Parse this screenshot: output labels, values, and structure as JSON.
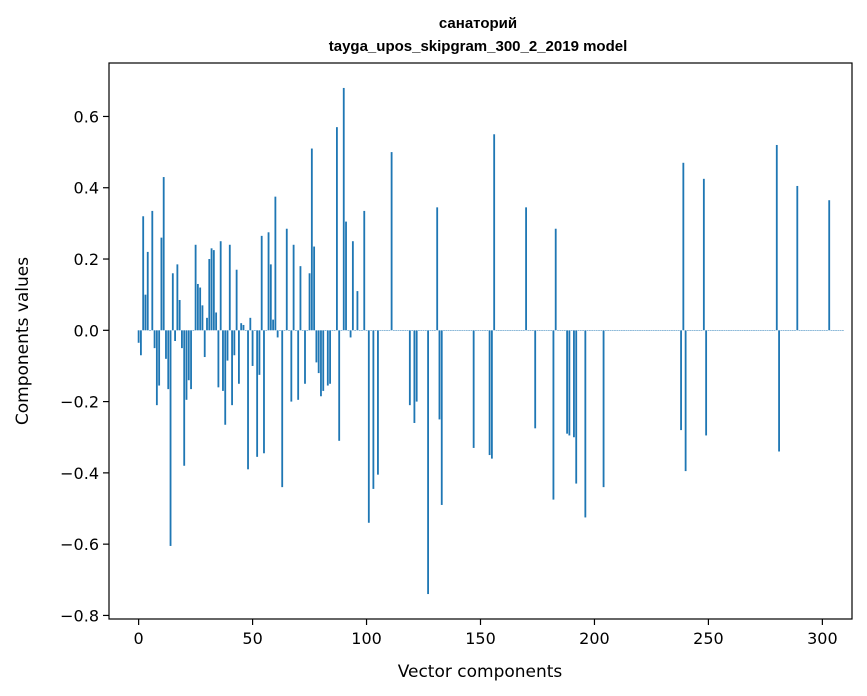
{
  "chart_data": {
    "type": "bar",
    "title": "санаторий",
    "subtitle": "tayga_upos_skipgram_300_2_2019 model",
    "xlabel": "Vector components",
    "ylabel": "Components values",
    "xlim": [
      -13,
      313
    ],
    "ylim": [
      -0.81,
      0.75
    ],
    "xticks": [
      0,
      50,
      100,
      150,
      200,
      250,
      300
    ],
    "yticks": [
      -0.8,
      -0.6,
      -0.4,
      -0.2,
      0.0,
      0.2,
      0.4,
      0.6
    ],
    "ytick_labels": [
      "−0.8",
      "−0.6",
      "−0.4",
      "−0.2",
      "0.0",
      "0.2",
      "0.4",
      "0.6"
    ],
    "grid": false,
    "bar_color": "#1f77b4",
    "values": [
      -0.035,
      -0.07,
      0.32,
      0.1,
      0.22,
      0.0,
      0.335,
      -0.05,
      -0.21,
      -0.155,
      0.26,
      0.43,
      -0.08,
      -0.165,
      -0.605,
      0.16,
      -0.03,
      0.185,
      0.085,
      -0.05,
      -0.38,
      -0.195,
      -0.14,
      -0.165,
      0.0,
      0.24,
      0.13,
      0.12,
      0.07,
      -0.075,
      0.035,
      0.2,
      0.23,
      0.225,
      0.05,
      -0.16,
      0.25,
      -0.17,
      -0.265,
      -0.085,
      0.24,
      -0.21,
      -0.07,
      0.17,
      -0.15,
      0.02,
      0.015,
      0.0,
      -0.39,
      0.035,
      -0.1,
      0.0,
      -0.355,
      -0.125,
      0.265,
      -0.345,
      0.0,
      0.275,
      0.185,
      0.03,
      0.375,
      -0.02,
      0.0,
      -0.44,
      0.0,
      0.285,
      0.0,
      -0.2,
      0.24,
      0.0,
      -0.195,
      0.18,
      0.0,
      -0.15,
      0.0,
      0.16,
      0.51,
      0.235,
      -0.09,
      -0.12,
      -0.185,
      -0.17,
      0.0,
      -0.155,
      -0.15,
      0.0,
      0.0,
      0.57,
      -0.31,
      0.0,
      0.68,
      0.305,
      0.0,
      -0.02,
      0.25,
      0.0,
      0.11,
      0.0,
      0.0,
      0.335,
      0.0,
      -0.54,
      0.0,
      -0.445,
      0.0,
      -0.405,
      0.0,
      0.0,
      0.0,
      0.0,
      0.0,
      0.5,
      0.0,
      0.0,
      0.0,
      0.0,
      0.0,
      0.0,
      0.0,
      -0.21,
      0.0,
      -0.26,
      -0.2,
      0.0,
      0.0,
      0.0,
      0.0,
      -0.74,
      0.0,
      0.0,
      0.0,
      0.345,
      -0.25,
      -0.49,
      0.0,
      0.0,
      0.0,
      0.0,
      0.0,
      0.0,
      0.0,
      0.0,
      0.0,
      0.0,
      0.0,
      0.0,
      0.0,
      -0.33,
      0.0,
      0.0,
      0.0,
      0.0,
      0.0,
      0.0,
      -0.35,
      -0.36,
      0.55,
      0.0,
      0.0,
      0.0,
      0.0,
      0.0,
      0.0,
      0.0,
      0.0,
      0.0,
      0.0,
      0.0,
      0.0,
      0.0,
      0.345,
      0.0,
      0.0,
      0.0,
      -0.275,
      0.0,
      0.0,
      0.0,
      0.0,
      0.0,
      0.0,
      0.0,
      -0.475,
      0.285,
      0.0,
      0.0,
      0.0,
      0.0,
      -0.29,
      -0.295,
      0.0,
      -0.3,
      -0.43,
      0.0,
      0.0,
      0.0,
      -0.525,
      0.0,
      0.0,
      0.0,
      0.0,
      0.0,
      0.0,
      0.0,
      -0.44,
      0.0,
      0.0,
      0.0,
      0.0,
      0.0,
      0.0,
      0.0,
      0.0,
      0.0,
      0.0,
      0.0,
      0.0,
      0.0,
      0.0,
      0.0,
      0.0,
      0.0,
      0.0,
      0.0,
      0.0,
      0.0,
      0.0,
      0.0,
      0.0,
      0.0,
      0.0,
      0.0,
      0.0,
      0.0,
      0.0,
      0.0,
      0.0,
      0.0,
      -0.28,
      0.47,
      -0.395,
      0.0,
      0.0,
      0.0,
      0.0,
      0.0,
      0.0,
      0.0,
      0.425,
      -0.295,
      0.0,
      0.0,
      0.0,
      0.0,
      0.0,
      0.0,
      0.0,
      0.0,
      0.0,
      0.0,
      0.0,
      0.0,
      0.0,
      0.0,
      0.0,
      0.0,
      0.0,
      0.0,
      0.0,
      0.0,
      0.0,
      0.0,
      0.0,
      0.0,
      0.0,
      0.0,
      0.0,
      0.0,
      0.0,
      0.0,
      0.52,
      -0.34,
      0.0,
      0.0,
      0.0,
      0.0,
      0.0,
      0.0,
      0.0,
      0.405,
      0.0,
      0.0,
      0.0,
      0.0,
      0.0,
      0.0,
      0.0,
      0.0,
      0.0,
      0.0,
      0.0,
      0.0,
      0.0,
      0.365,
      0.0,
      0.0,
      0.0,
      0.0,
      0.0,
      0.0
    ]
  }
}
